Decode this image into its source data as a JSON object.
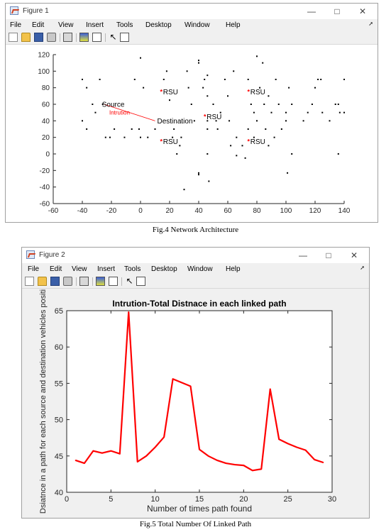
{
  "figure1": {
    "title": "Figure 1",
    "menu": [
      "File",
      "Edit",
      "View",
      "Insert",
      "Tools",
      "Desktop",
      "Window",
      "Help"
    ],
    "caption": "Fig.4 Network Architecture"
  },
  "figure2": {
    "title": "Figure 2",
    "menu": [
      "File",
      "Edit",
      "View",
      "Insert",
      "Tools",
      "Desktop",
      "Window",
      "Help"
    ],
    "caption": "Fig.5 Total Number Of Linked Path"
  },
  "icons": [
    "new-file-icon",
    "open-folder-icon",
    "save-icon",
    "print-icon",
    "print-preview-icon",
    "insert-colorbar-icon",
    "insert-legend-icon",
    "pointer-icon",
    "property-editor-icon"
  ],
  "colors": {
    "intrusion": "#ff0000",
    "rsu": "#ff0000",
    "line": "#ff0000",
    "node": "#000000"
  },
  "chart_data": [
    {
      "type": "scatter",
      "title": "",
      "xlabel": "",
      "ylabel": "",
      "xlim": [
        -60,
        140
      ],
      "ylim": [
        -60,
        120
      ],
      "xticks": [
        -60,
        -40,
        -20,
        0,
        20,
        40,
        60,
        80,
        100,
        120,
        140
      ],
      "yticks": [
        -60,
        -40,
        -20,
        0,
        20,
        40,
        60,
        80,
        100,
        120
      ],
      "grid": false,
      "nodes": [
        [
          -40,
          90
        ],
        [
          -37,
          80
        ],
        [
          -33,
          60
        ],
        [
          -31,
          50
        ],
        [
          -28,
          90
        ],
        [
          -26,
          60
        ],
        [
          -40,
          40
        ],
        [
          -37,
          30
        ],
        [
          -24,
          20
        ],
        [
          -21,
          20
        ],
        [
          -18,
          30
        ],
        [
          -11,
          20
        ],
        [
          -6,
          30
        ],
        [
          -4,
          90
        ],
        [
          0,
          116
        ],
        [
          2,
          80
        ],
        [
          0,
          20
        ],
        [
          -1,
          30
        ],
        [
          5,
          20
        ],
        [
          10,
          30
        ],
        [
          16,
          90
        ],
        [
          18,
          100
        ],
        [
          20,
          65
        ],
        [
          22,
          20
        ],
        [
          23,
          30
        ],
        [
          25,
          0
        ],
        [
          27,
          10
        ],
        [
          28,
          20
        ],
        [
          30,
          -43
        ],
        [
          32,
          100
        ],
        [
          33,
          80
        ],
        [
          35,
          60
        ],
        [
          37,
          40
        ],
        [
          40,
          110
        ],
        [
          40,
          113
        ],
        [
          40,
          -23
        ],
        [
          40,
          -25
        ],
        [
          43,
          80
        ],
        [
          44,
          90
        ],
        [
          46,
          95
        ],
        [
          46,
          70
        ],
        [
          46,
          0
        ],
        [
          47,
          -33
        ],
        [
          46,
          40
        ],
        [
          46,
          30
        ],
        [
          50,
          60
        ],
        [
          52,
          40
        ],
        [
          53,
          30
        ],
        [
          55,
          50
        ],
        [
          58,
          90
        ],
        [
          60,
          70
        ],
        [
          61,
          40
        ],
        [
          62,
          10
        ],
        [
          64,
          100
        ],
        [
          66,
          -2
        ],
        [
          66,
          20
        ],
        [
          70,
          10
        ],
        [
          72,
          -5
        ],
        [
          74,
          30
        ],
        [
          74,
          90
        ],
        [
          76,
          60
        ],
        [
          78,
          20
        ],
        [
          78,
          50
        ],
        [
          80,
          118
        ],
        [
          80,
          40
        ],
        [
          82,
          80
        ],
        [
          84,
          110
        ],
        [
          85,
          60
        ],
        [
          86,
          30
        ],
        [
          88,
          70
        ],
        [
          88,
          10
        ],
        [
          90,
          50
        ],
        [
          92,
          20
        ],
        [
          93,
          90
        ],
        [
          95,
          60
        ],
        [
          97,
          30
        ],
        [
          100,
          40
        ],
        [
          100,
          50
        ],
        [
          102,
          80
        ],
        [
          104,
          60
        ],
        [
          101,
          -23
        ],
        [
          104,
          0
        ],
        [
          112,
          40
        ],
        [
          115,
          50
        ],
        [
          118,
          60
        ],
        [
          120,
          80
        ],
        [
          122,
          90
        ],
        [
          124,
          90
        ],
        [
          125,
          50
        ],
        [
          130,
          40
        ],
        [
          134,
          60
        ],
        [
          136,
          0
        ],
        [
          137,
          50
        ],
        [
          136,
          60
        ],
        [
          140,
          90
        ],
        [
          140,
          50
        ]
      ],
      "rsu": [
        [
          15,
          75
        ],
        [
          75,
          75
        ],
        [
          15,
          15
        ],
        [
          75,
          15
        ],
        [
          45,
          45
        ]
      ],
      "rsu_label": "RSU",
      "source": [
        -25,
        60
      ],
      "source_label": "Source",
      "destination": [
        10,
        40
      ],
      "destination_label": "Destination",
      "intrusion": [
        -20,
        50
      ],
      "intrusion_label": "Intrution"
    },
    {
      "type": "line",
      "title": "Intrution-Total Distnace in each linked path",
      "xlabel": "Number of times path found",
      "ylabel": "Dsiatnce in a path for each source and destination vehicles positi",
      "xlim": [
        0,
        30
      ],
      "ylim": [
        40,
        65
      ],
      "xticks": [
        0,
        5,
        10,
        15,
        20,
        25,
        30
      ],
      "yticks": [
        40,
        45,
        50,
        55,
        60,
        65
      ],
      "grid": false,
      "x": [
        1,
        2,
        3,
        4,
        5,
        6,
        7,
        8,
        9,
        10,
        11,
        12,
        13,
        14,
        15,
        16,
        17,
        18,
        19,
        20,
        21,
        22,
        23,
        24,
        25,
        26,
        27,
        28,
        29
      ],
      "values": [
        44.4,
        44.0,
        45.7,
        45.4,
        45.7,
        45.3,
        64.8,
        44.2,
        45.0,
        46.2,
        47.6,
        55.6,
        55.1,
        54.6,
        45.9,
        45.0,
        44.4,
        44.0,
        43.8,
        43.7,
        43.0,
        43.2,
        54.2,
        47.3,
        46.7,
        46.2,
        45.8,
        44.5,
        44.1
      ]
    }
  ]
}
